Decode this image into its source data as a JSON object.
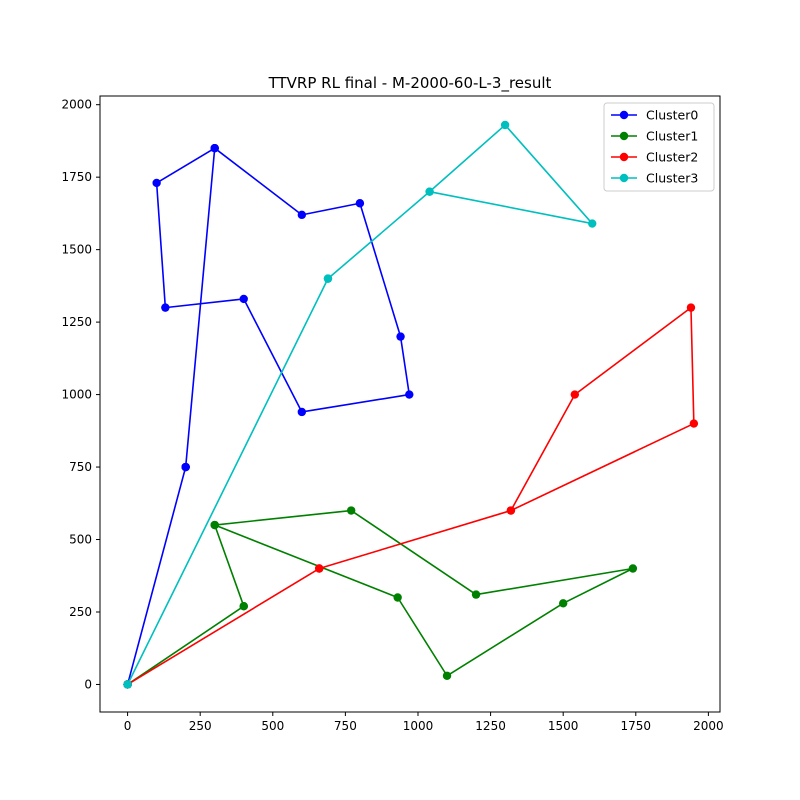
{
  "chart_data": {
    "type": "line",
    "title": "TTVRP RL final - M-2000-60-L-3_result",
    "xlabel": "",
    "ylabel": "",
    "xlim": [
      -95,
      2040
    ],
    "ylim": [
      -95,
      2030
    ],
    "xticks": [
      0,
      250,
      500,
      750,
      1000,
      1250,
      1500,
      1750,
      2000
    ],
    "yticks": [
      0,
      250,
      500,
      750,
      1000,
      1250,
      1500,
      1750,
      2000
    ],
    "grid": false,
    "legend_position": "top-right",
    "series": [
      {
        "name": "Cluster0",
        "color": "#0000ff",
        "points": [
          [
            0,
            0
          ],
          [
            200,
            750
          ],
          [
            300,
            1850
          ],
          [
            200,
            750
          ],
          [
            0,
            0
          ],
          [
            200,
            750
          ],
          [
            300,
            1850
          ],
          [
            100,
            1730
          ],
          [
            130,
            1300
          ],
          [
            400,
            1330
          ],
          [
            600,
            940
          ],
          [
            970,
            1000
          ],
          [
            940,
            1200
          ],
          [
            800,
            1660
          ],
          [
            600,
            1620
          ],
          [
            300,
            1850
          ],
          [
            200,
            750
          ],
          [
            0,
            0
          ]
        ]
      },
      {
        "name": "Cluster1",
        "color": "#008000",
        "points": [
          [
            0,
            0
          ],
          [
            400,
            270
          ],
          [
            300,
            550
          ],
          [
            770,
            600
          ],
          [
            1200,
            310
          ],
          [
            1740,
            400
          ],
          [
            1500,
            280
          ],
          [
            1100,
            30
          ],
          [
            930,
            300
          ],
          [
            300,
            550
          ],
          [
            400,
            270
          ],
          [
            0,
            0
          ]
        ]
      },
      {
        "name": "Cluster2",
        "color": "#ff0000",
        "points": [
          [
            0,
            0
          ],
          [
            660,
            400
          ],
          [
            1320,
            600
          ],
          [
            1950,
            900
          ],
          [
            1940,
            1300
          ],
          [
            1540,
            1000
          ],
          [
            1320,
            600
          ],
          [
            660,
            400
          ],
          [
            0,
            0
          ]
        ]
      },
      {
        "name": "Cluster3",
        "color": "#00bfbf",
        "points": [
          [
            0,
            0
          ],
          [
            690,
            1400
          ],
          [
            1040,
            1700
          ],
          [
            1300,
            1930
          ],
          [
            1600,
            1590
          ],
          [
            1040,
            1700
          ],
          [
            690,
            1400
          ],
          [
            0,
            0
          ]
        ]
      }
    ]
  }
}
